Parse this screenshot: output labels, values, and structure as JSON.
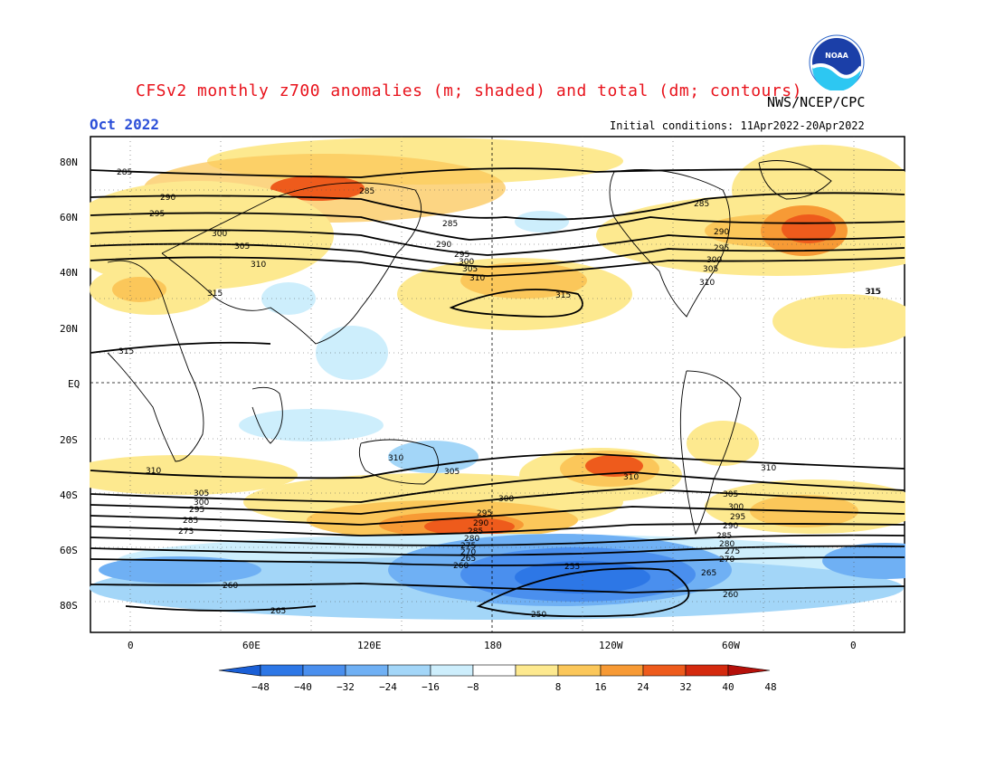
{
  "header": {
    "title": "CFSv2 monthly z700 anomalies (m; shaded) and total (dm; contours)",
    "agency": "NWS/NCEP/CPC",
    "period": "Oct 2022",
    "initial_conditions": "Initial conditions: 11Apr2022-20Apr2022"
  },
  "logo": {
    "text": "NOAA",
    "icon": "noaa-logo"
  },
  "axes": {
    "lat_labels": [
      "80N",
      "60N",
      "40N",
      "20N",
      "EQ",
      "20S",
      "40S",
      "60S",
      "80S"
    ],
    "lon_labels": [
      "0",
      "60E",
      "120E",
      "180",
      "120W",
      "60W",
      "0"
    ]
  },
  "contour_labels": [
    "285",
    "290",
    "295",
    "300",
    "305",
    "310",
    "315",
    "285",
    "290",
    "295",
    "300",
    "305",
    "310",
    "315",
    "285",
    "290",
    "295",
    "300",
    "305",
    "310",
    "315",
    "310",
    "305",
    "300",
    "295",
    "290",
    "285",
    "280",
    "275",
    "270",
    "265",
    "260",
    "255",
    "250",
    "305",
    "300",
    "295",
    "290",
    "285",
    "280",
    "275",
    "270",
    "265",
    "260",
    "305",
    "300",
    "295",
    "285",
    "273",
    "260",
    "265",
    "310",
    "310",
    "315",
    "285",
    "310",
    "315"
  ],
  "colorbar": {
    "ticks": [
      "−48",
      "−40",
      "−32",
      "−24",
      "−16",
      "−8",
      "8",
      "16",
      "24",
      "32",
      "40",
      "48"
    ],
    "colors": [
      "#1a5fd6",
      "#2d77e6",
      "#4a8fee",
      "#6fb0f4",
      "#a3d6f8",
      "#cdeefc",
      "#ffffff",
      "#fde98f",
      "#fbc75a",
      "#f79a35",
      "#ee5b1c",
      "#d42a0e",
      "#b5100a"
    ]
  },
  "colors": {
    "title": "#e8121b",
    "period": "#2b4fd8"
  }
}
